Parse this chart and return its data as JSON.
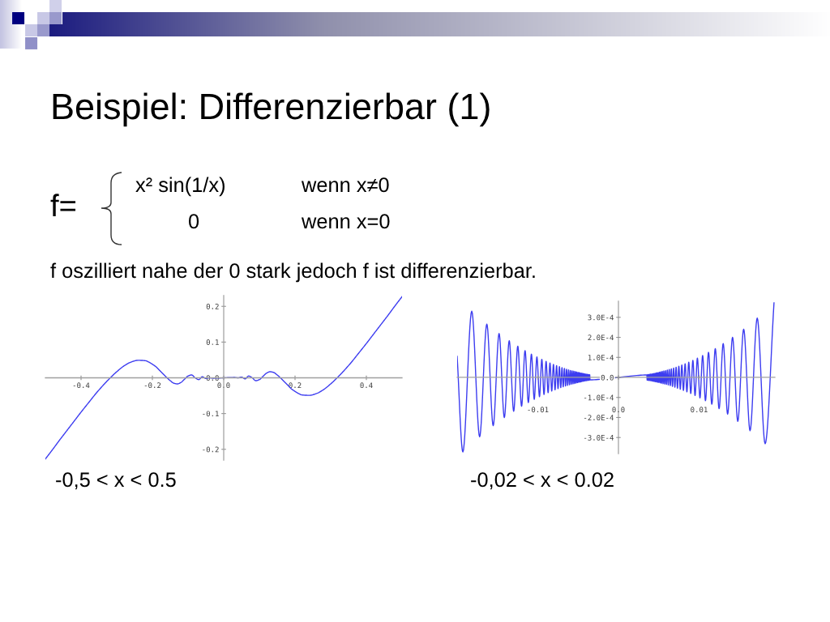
{
  "chart_data": [
    {
      "type": "line",
      "title": "Beispiel: Differenzierbar (1)",
      "subtitle": "f oszilliert nahe der 0 stark jedoch f ist differenzierbar.",
      "annotations": [
        "f=",
        "x² sin(1/x)",
        "wenn x≠0",
        "0",
        "wenn x=0",
        "-0,5 < x < 0.5"
      ],
      "series": [
        {
          "color": "#3c3cf0",
          "x": [
            -0.5,
            -0.48,
            -0.46,
            -0.44,
            -0.42,
            -0.4,
            -0.38,
            -0.36,
            -0.34,
            -0.32,
            -0.3,
            -0.28,
            -0.26,
            -0.24,
            -0.22,
            -0.21,
            -0.2,
            -0.19,
            -0.18,
            -0.17,
            -0.16,
            -0.15,
            -0.14,
            -0.13,
            -0.12,
            -0.11,
            -0.1,
            -0.09,
            -0.08,
            -0.07,
            -0.06,
            -0.05,
            -0.04,
            -0.03,
            0,
            0.03,
            0.04,
            0.05,
            0.06,
            0.07,
            0.08,
            0.09,
            0.1,
            0.11,
            0.12,
            0.13,
            0.14,
            0.15,
            0.16,
            0.17,
            0.18,
            0.19,
            0.2,
            0.21,
            0.22,
            0.24,
            0.26,
            0.28,
            0.3,
            0.32,
            0.34,
            0.36,
            0.38,
            0.4,
            0.42,
            0.44,
            0.46,
            0.48,
            0.5
          ],
          "values": [
            -0.227,
            -0.201,
            -0.174,
            -0.148,
            -0.122,
            -0.096,
            -0.071,
            -0.046,
            -0.023,
            -0.002,
            0.017,
            0.033,
            0.044,
            0.049,
            0.048,
            0.044,
            0.038,
            0.031,
            0.021,
            0.011,
            0.001,
            -0.008,
            -0.015,
            -0.017,
            -0.013,
            -0.004,
            0.005,
            0.008,
            0.0,
            -0.005,
            0.003,
            -0.002,
            0.0,
            -0.001,
            0,
            0.001,
            0.0,
            0.002,
            -0.003,
            0.005,
            0.0,
            -0.008,
            -0.005,
            0.004,
            0.013,
            0.017,
            0.015,
            0.008,
            -0.001,
            -0.011,
            -0.021,
            -0.031,
            -0.038,
            -0.044,
            -0.048,
            -0.049,
            -0.044,
            -0.033,
            -0.017,
            0.002,
            0.023,
            0.046,
            0.071,
            0.096,
            0.122,
            0.148,
            0.174,
            0.201,
            0.227
          ]
        }
      ],
      "xlim": [
        -0.5,
        0.5
      ],
      "ylim": [
        -0.23,
        0.23
      ],
      "xticks": [
        -0.4,
        -0.2,
        {
          "value": 0,
          "label": "0.0"
        },
        0.2,
        0.4
      ],
      "yticks": [
        -0.2,
        -0.1,
        {
          "value": 0,
          "label": "0.0"
        },
        0.1,
        0.2
      ],
      "line_style": "solid"
    },
    {
      "type": "line",
      "annotations": [
        "-0,02 < x < 0.02"
      ],
      "series": [
        {
          "color": "#3c3cf0",
          "x": [
            -0.02,
            -0.01929,
            -0.01819,
            -0.01721,
            -0.01632,
            -0.01553,
            -0.0148,
            -0.01415,
            -0.01354,
            -0.01299,
            -0.01248,
            -0.01201,
            -0.01158,
            -0.01117,
            -0.01079,
            -0.01044,
            -0.01011,
            -0.00979,
            -0.0095,
            -0.00923,
            -0.00897,
            -0.00872,
            -0.00849,
            -0.00827,
            -0.00806,
            -0.00786,
            -0.00767,
            -0.00749,
            -0.00732,
            -0.00715,
            -0.007,
            -0.00685,
            -0.0067,
            -0.00656,
            -0.00643,
            -0.0063,
            -0.00618,
            -0.00606,
            -0.00595,
            -0.00584,
            -0.00574,
            -0.00563,
            -0.00554,
            -0.00544,
            -0.00535,
            -0.00526,
            -0.00518,
            -0.00509,
            -0.00501,
            -0.00494,
            -0.00486,
            -0.00479,
            -0.00472,
            -0.00465,
            -0.00458,
            -0.00452,
            -0.00445,
            -0.00439,
            -0.00433,
            -0.00427,
            -0.00422,
            -0.00416,
            -0.00411,
            -0.00405,
            -0.004,
            -0.00395,
            -0.00391,
            -0.00386,
            -0.00381,
            -0.00377,
            -0.00372,
            -0.00368,
            -0.00364,
            -0.0036,
            -0.00356,
            -0.00352,
            0,
            0.00352,
            0.00356,
            0.0036,
            0.00364,
            0.00368,
            0.00372,
            0.00377,
            0.00381,
            0.00386,
            0.00391,
            0.00395,
            0.004,
            0.00405,
            0.00411,
            0.00416,
            0.00422,
            0.00427,
            0.00433,
            0.00439,
            0.00445,
            0.00452,
            0.00458,
            0.00465,
            0.00472,
            0.00479,
            0.00486,
            0.00494,
            0.00501,
            0.00509,
            0.00518,
            0.00526,
            0.00535,
            0.00544,
            0.00554,
            0.00563,
            0.00574,
            0.00584,
            0.00595,
            0.00606,
            0.00618,
            0.0063,
            0.00643,
            0.00656,
            0.0067,
            0.00685,
            0.007,
            0.00715,
            0.00732,
            0.00749,
            0.00767,
            0.00786,
            0.00806,
            0.00827,
            0.00849,
            0.00872,
            0.00897,
            0.00923,
            0.0095,
            0.00979,
            0.01011,
            0.01044,
            0.01079,
            0.01117,
            0.01158,
            0.01201,
            0.01248,
            0.01299,
            0.01354,
            0.01415,
            0.0148,
            0.01553,
            0.01632,
            0.01721,
            0.01819,
            0.01929
          ],
          "values": [
            0.000105,
            -0.000372,
            0.000331,
            -0.000296,
            0.000266,
            -0.000241,
            0.000219,
            -0.0002,
            0.000183,
            -0.000169,
            0.000156,
            -0.000144,
            0.000134,
            -0.000125,
            0.000116,
            -0.000109,
            0.000102,
            -9.6e-05,
            9e-05,
            -8.5e-05,
            8e-05,
            -7.6e-05,
            7.2e-05,
            -6.8e-05,
            6.5e-05,
            -6.2e-05,
            5.9e-05,
            -5.6e-05,
            5.4e-05,
            -5.1e-05,
            4.9e-05,
            -4.7e-05,
            4.5e-05,
            -4.3e-05,
            4.1e-05,
            -4e-05,
            3.8e-05,
            -3.7e-05,
            3.5e-05,
            -3.4e-05,
            3.3e-05,
            -3.2e-05,
            3.1e-05,
            -3e-05,
            2.9e-05,
            -2.8e-05,
            2.7e-05,
            -2.6e-05,
            2.5e-05,
            -2.4e-05,
            2.4e-05,
            -2.3e-05,
            2.2e-05,
            -2.2e-05,
            2.1e-05,
            -2e-05,
            2e-05,
            -1.9e-05,
            1.9e-05,
            -1.8e-05,
            1.8e-05,
            -1.7e-05,
            1.7e-05,
            -1.6e-05,
            1.6e-05,
            -1.6e-05,
            1.5e-05,
            -1.5e-05,
            1.5e-05,
            -1.4e-05,
            1.4e-05,
            -1.4e-05,
            1.3e-05,
            -1.3e-05,
            1.3e-05,
            -1.2e-05,
            0,
            1.2e-05,
            -1.3e-05,
            1.3e-05,
            -1.3e-05,
            1.4e-05,
            -1.4e-05,
            1.4e-05,
            -1.5e-05,
            1.5e-05,
            -1.5e-05,
            1.6e-05,
            -1.6e-05,
            1.6e-05,
            -1.7e-05,
            1.7e-05,
            -1.8e-05,
            1.8e-05,
            -1.9e-05,
            1.9e-05,
            -2e-05,
            2e-05,
            -2.1e-05,
            2.2e-05,
            -2.2e-05,
            2.3e-05,
            -2.4e-05,
            2.4e-05,
            -2.5e-05,
            2.6e-05,
            -2.7e-05,
            2.8e-05,
            -2.9e-05,
            3e-05,
            -3.1e-05,
            3.2e-05,
            -3.3e-05,
            3.4e-05,
            -3.5e-05,
            3.7e-05,
            -3.8e-05,
            4e-05,
            -4.1e-05,
            4.3e-05,
            -4.5e-05,
            4.7e-05,
            -4.9e-05,
            5.1e-05,
            -5.4e-05,
            5.6e-05,
            -5.9e-05,
            6.2e-05,
            -6.5e-05,
            6.8e-05,
            -7.2e-05,
            7.6e-05,
            -8e-05,
            8.5e-05,
            -9e-05,
            9.6e-05,
            -0.000102,
            0.000109,
            -0.000116,
            0.000125,
            -0.000134,
            0.000144,
            -0.000156,
            0.000169,
            -0.000183,
            0.0002,
            -0.000219,
            0.000241,
            -0.000266,
            0.000296,
            -0.000331,
            0.000372
          ]
        }
      ],
      "xlim": [
        -0.02,
        0.0194
      ],
      "ylim": [
        -0.00038,
        0.00038
      ],
      "xticks": [
        -0.01,
        {
          "value": 0,
          "label": "0.0"
        },
        0.01
      ],
      "yticks": [
        {
          "value": -0.0003,
          "label": "-3.0E-4"
        },
        {
          "value": -0.0002,
          "label": "-2.0E-4"
        },
        {
          "value": -0.0001,
          "label": "-1.0E-4"
        },
        {
          "value": 0,
          "label": "0.0"
        },
        {
          "value": 0.0001,
          "label": "1.0E-4"
        },
        {
          "value": 0.0002,
          "label": "2.0E-4"
        },
        {
          "value": 0.0003,
          "label": "3.0E-4"
        }
      ],
      "line_style": "solid"
    }
  ]
}
